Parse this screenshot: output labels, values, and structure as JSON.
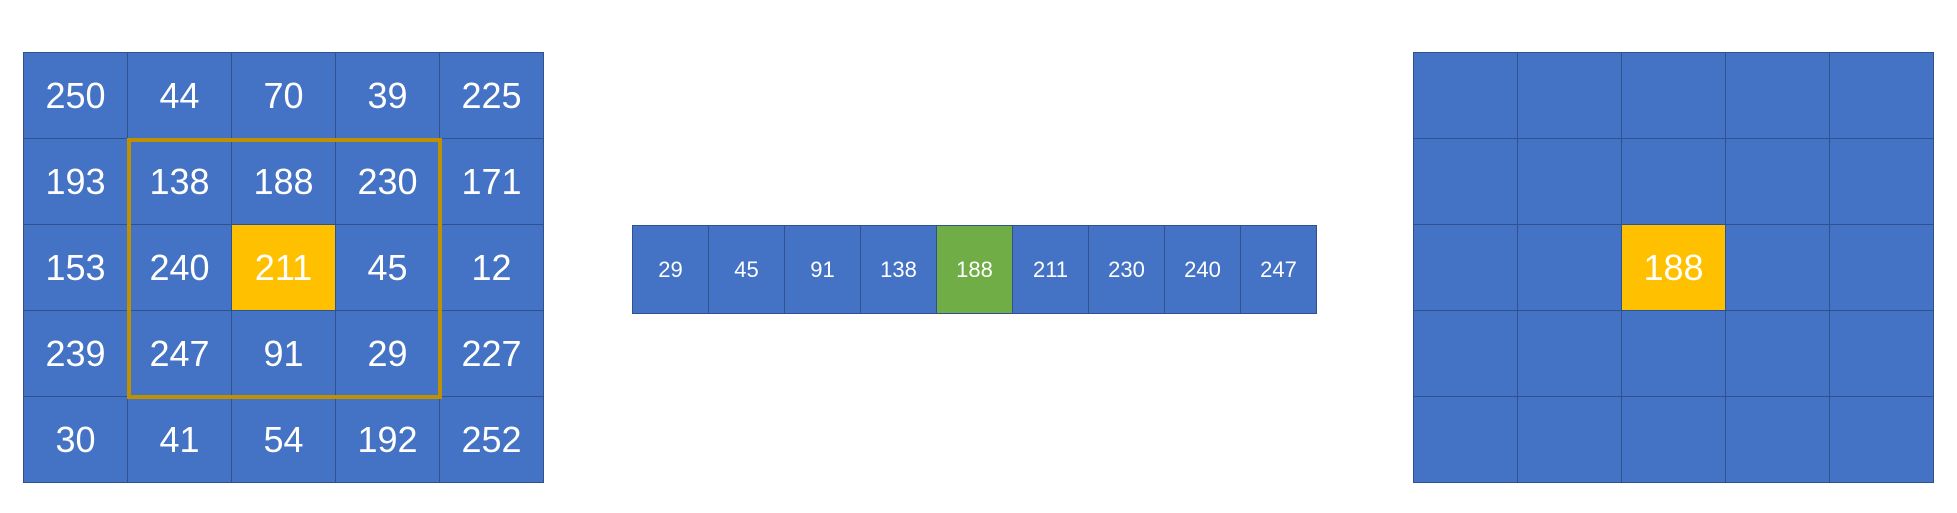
{
  "colors": {
    "cell_fill": "#4472c4",
    "cell_border": "#2f528f",
    "highlight_center": "#ffc000",
    "window_border": "#bf9000",
    "median_fill": "#70ad47",
    "text": "#ffffff"
  },
  "input_grid": {
    "rows": [
      [
        "250",
        "44",
        "70",
        "39",
        "225"
      ],
      [
        "193",
        "138",
        "188",
        "230",
        "171"
      ],
      [
        "153",
        "240",
        "211",
        "45",
        "12"
      ],
      [
        "239",
        "247",
        "91",
        "29",
        "227"
      ],
      [
        "30",
        "41",
        "54",
        "192",
        "252"
      ]
    ],
    "highlight_cell": {
      "row": 2,
      "col": 2
    },
    "window": {
      "row_start": 1,
      "row_end": 3,
      "col_start": 1,
      "col_end": 3
    }
  },
  "sorted_values": [
    "29",
    "45",
    "91",
    "138",
    "188",
    "211",
    "230",
    "240",
    "247"
  ],
  "median_index": 4,
  "output_grid": {
    "rows": [
      [
        "",
        "",
        "",
        "",
        ""
      ],
      [
        "",
        "",
        "",
        "",
        ""
      ],
      [
        "",
        "",
        "188",
        "",
        ""
      ],
      [
        "",
        "",
        "",
        "",
        ""
      ],
      [
        "",
        "",
        "",
        "",
        ""
      ]
    ],
    "highlight_cell": {
      "row": 2,
      "col": 2
    }
  }
}
